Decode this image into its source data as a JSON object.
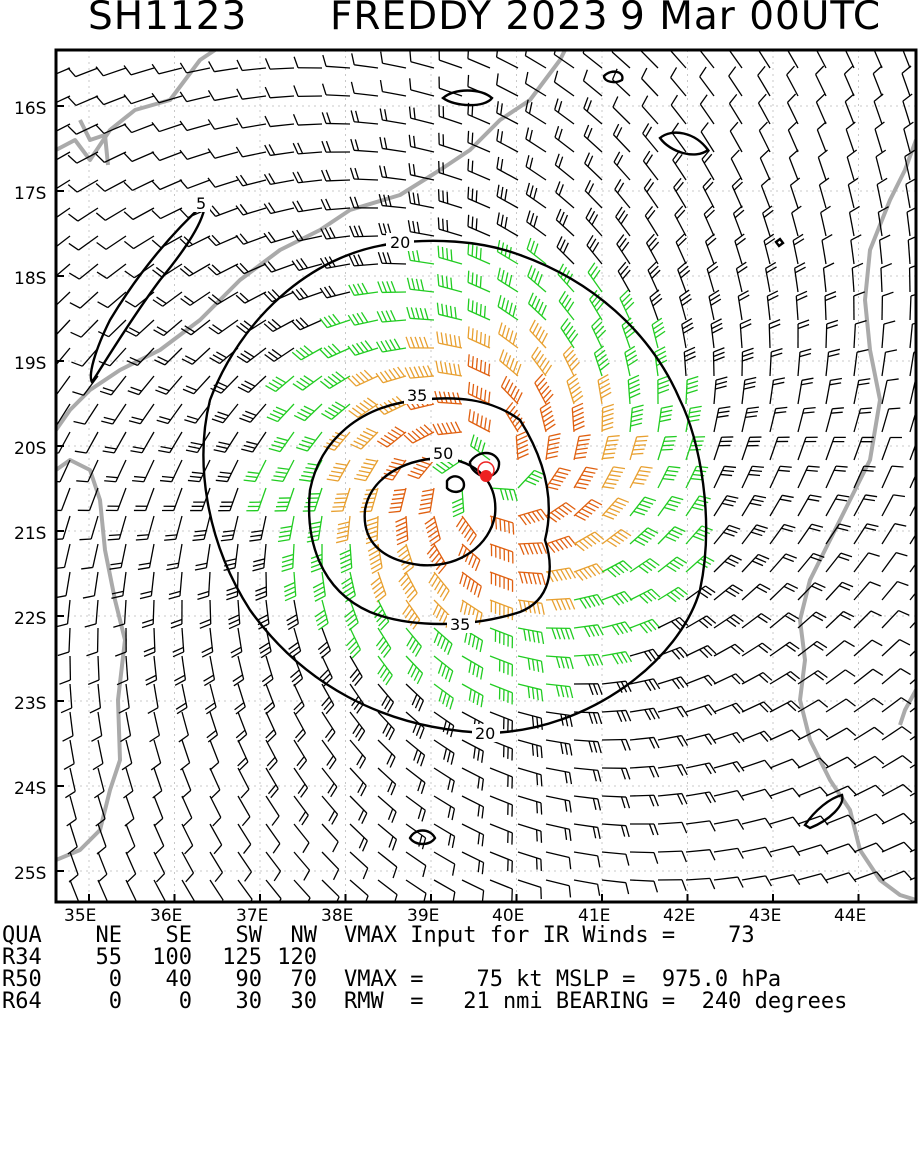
{
  "header": {
    "storm_id": "SH1123",
    "storm_name_year": "FREDDY 2023",
    "valid_time": "9 Mar 00UTC"
  },
  "axes": {
    "lat_labels": [
      "16S",
      "17S",
      "18S",
      "19S",
      "20S",
      "21S",
      "22S",
      "23S",
      "24S",
      "25S"
    ],
    "lon_labels": [
      "35E",
      "36E",
      "37E",
      "38E",
      "39E",
      "40E",
      "41E",
      "42E",
      "43E",
      "44E"
    ]
  },
  "contours": {
    "labels": [
      "5",
      "20",
      "35",
      "50",
      "35",
      "20"
    ]
  },
  "colors": {
    "wind_weak": "#000000",
    "wind_34kt": "#22cc22",
    "wind_50kt": "#e8a030",
    "wind_64kt": "#e06010",
    "center": "#ee2222",
    "coast": "#aaaaaa"
  },
  "footer": {
    "rows": [
      {
        "label": "QUA",
        "cols": [
          "NE",
          "SE",
          "SW",
          "NW"
        ],
        "text": "VMAX Input for IR Winds =    73"
      },
      {
        "label": "R34",
        "cols": [
          "55",
          "100",
          "125",
          "120"
        ],
        "text": ""
      },
      {
        "label": "R50",
        "cols": [
          "0",
          "40",
          "90",
          "70"
        ],
        "text": "VMAX =    75 kt MSLP =  975.0 hPa"
      },
      {
        "label": "R64",
        "cols": [
          "0",
          "0",
          "30",
          "30"
        ],
        "text": "RMW  =   21 nmi BEARING =  240 degrees"
      }
    ]
  }
}
